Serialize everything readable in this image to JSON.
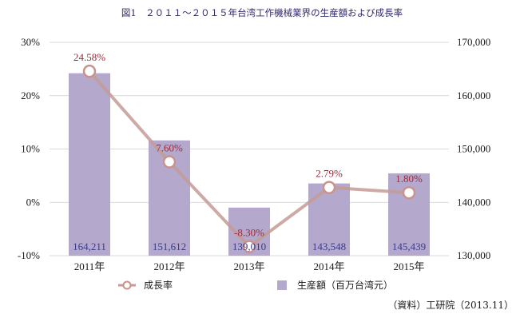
{
  "chart_data": {
    "type": "bar+line",
    "title": "図1　２０１１～２０１５年台湾工作機械業界の生産額および成長率",
    "categories": [
      "2011年",
      "2012年",
      "2013年",
      "2014年",
      "2015年"
    ],
    "series": [
      {
        "name": "生産額（百万台湾元）",
        "type": "bar",
        "axis": "right",
        "values": [
          164211,
          151612,
          139010,
          143548,
          145439
        ],
        "labels": [
          "164,211",
          "151,612",
          "139,010",
          "143,548",
          "145,439"
        ]
      },
      {
        "name": "成長率",
        "type": "line",
        "axis": "left",
        "values": [
          24.58,
          7.6,
          -8.3,
          2.79,
          1.8
        ],
        "labels": [
          "24.58%",
          "7.60%",
          "-8.30%",
          "2.79%",
          "1.80%"
        ]
      }
    ],
    "left_axis": {
      "ylim": [
        -10,
        30
      ],
      "ticks": [
        "30%",
        "20%",
        "10%",
        "0%",
        "-10%"
      ],
      "tick_values": [
        30,
        20,
        10,
        0,
        -10
      ]
    },
    "right_axis": {
      "ylim": [
        130000,
        170000
      ],
      "ticks": [
        "170,000",
        "160,000",
        "150,000",
        "140,000",
        "130,000"
      ],
      "tick_values": [
        170000,
        160000,
        150000,
        140000,
        130000
      ]
    },
    "grid": true,
    "legend_position": "bottom",
    "colors": {
      "bar": "#b4a9cc",
      "line": "#c49b95",
      "marker_stroke": "#c9928a",
      "rate_label": "#9a2a3a",
      "bar_label": "#3a3a8a",
      "title": "#2f2a6b"
    }
  },
  "source": "（資料）工研院（2013.11）"
}
